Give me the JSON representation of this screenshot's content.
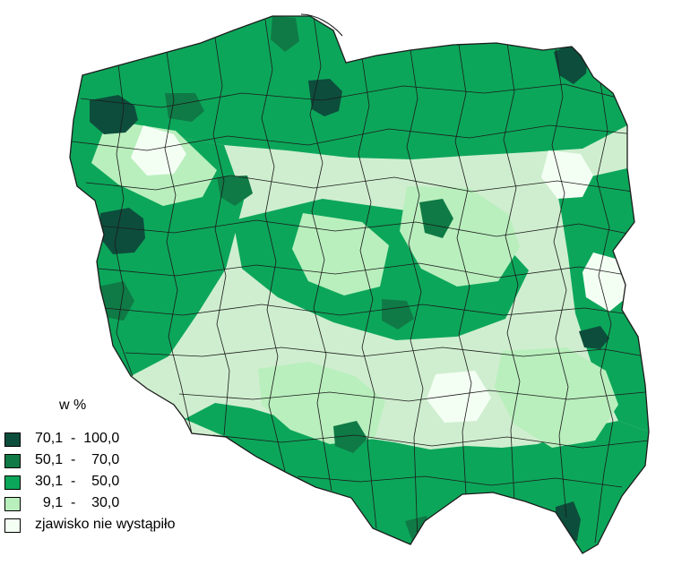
{
  "map": {
    "legend_title": "w %",
    "legend_items": [
      {
        "label": "70,1  -  100,0",
        "color": "#0d4d3c"
      },
      {
        "label": "50,1  -    70,0",
        "color": "#0f7a45"
      },
      {
        "label": "30,1  -    50,0",
        "color": "#0ca65a"
      },
      {
        "label": "  9,1  -    30,0",
        "color": "#b9efbd"
      },
      {
        "label": "zjawisko nie wystąpiło",
        "color": "#f4fff4"
      }
    ],
    "colors": {
      "border": "#1b1b1b",
      "water": "#ffffff"
    }
  }
}
